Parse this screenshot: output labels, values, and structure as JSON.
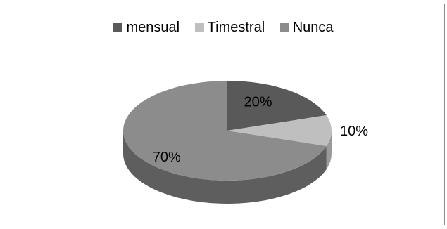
{
  "chart_data": {
    "type": "pie",
    "style": "3d",
    "title": "",
    "slices": [
      {
        "name": "mensual",
        "value": 20,
        "label": "20%",
        "color": "#595959",
        "side": "#424242"
      },
      {
        "name": "Timestral",
        "value": 10,
        "label": "10%",
        "color": "#bfbfbf",
        "side": "#9a9a9a"
      },
      {
        "name": "Nunca",
        "value": 70,
        "label": "70%",
        "color": "#8c8c8c",
        "side": "#5e5e5e"
      }
    ],
    "legend": {
      "position": "top"
    }
  }
}
